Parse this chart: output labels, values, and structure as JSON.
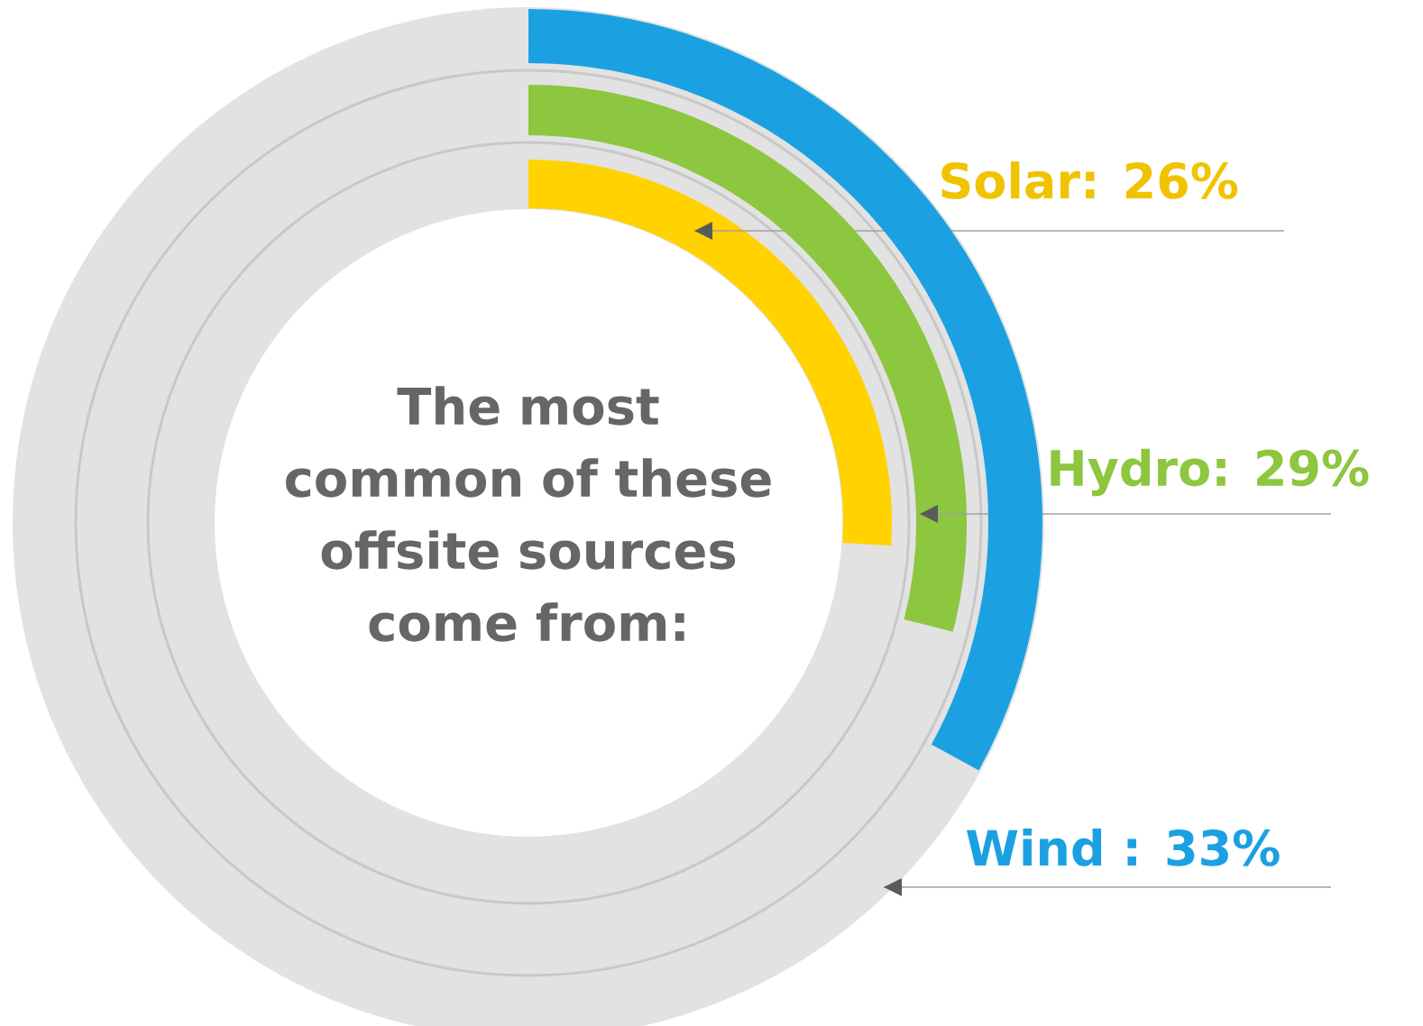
{
  "chart_data": {
    "type": "other",
    "title": "The most common of these offsite sources come from:",
    "values": [
      26,
      29,
      33
    ],
    "value_labels": [
      "Solar: 26%",
      "Hydro: 29%",
      "Wind : 33%"
    ],
    "colors": [
      "#ffd200",
      "#8dc63f",
      "#1ba1e2"
    ]
  }
}
